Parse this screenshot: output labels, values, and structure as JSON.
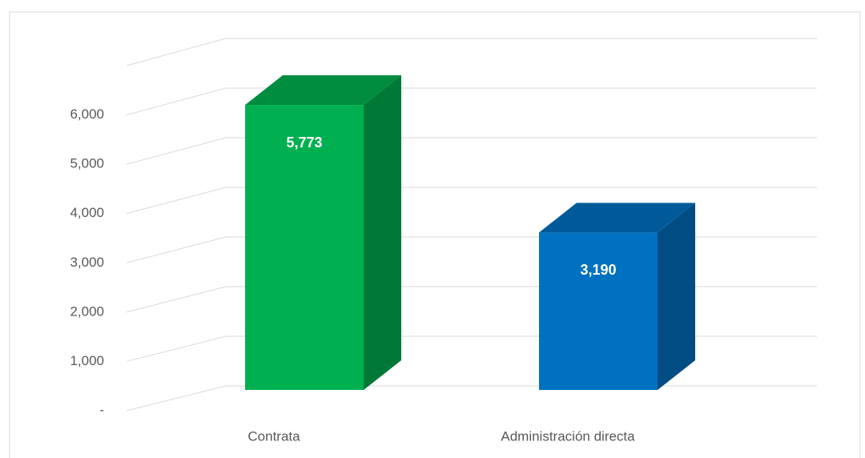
{
  "chart_data": {
    "type": "bar3d",
    "categories": [
      "Contrata",
      "Administración directa"
    ],
    "values": [
      5773,
      3190
    ],
    "value_labels": [
      "5,773",
      "3,190"
    ],
    "colors": [
      "#00b050",
      "#0070c0"
    ],
    "ylim": [
      0,
      7000
    ],
    "yticks": [
      {
        "value": 0,
        "label": "-"
      },
      {
        "value": 1000,
        "label": "1,000"
      },
      {
        "value": 2000,
        "label": "2,000"
      },
      {
        "value": 3000,
        "label": "3,000"
      },
      {
        "value": 4000,
        "label": "4,000"
      },
      {
        "value": 5000,
        "label": "5,000"
      },
      {
        "value": 6000,
        "label": "6,000"
      }
    ],
    "grid": true
  }
}
